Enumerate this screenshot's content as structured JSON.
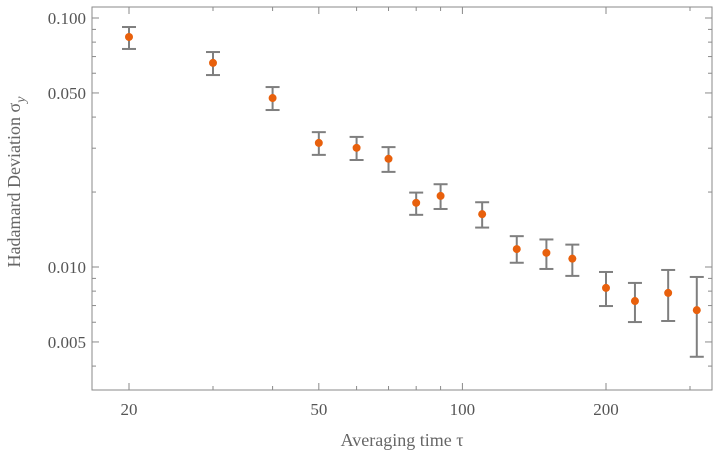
{
  "chart_data": {
    "type": "scatter",
    "title": "",
    "xlabel": "Averaging time τ",
    "ylabel": "Hadamard Deviation σ",
    "ylabel_subscript": "y",
    "xscale": "log",
    "yscale": "log",
    "xlim": [
      16,
      370
    ],
    "ylim": [
      0.0035,
      0.108
    ],
    "x_ticks": [
      20,
      50,
      100,
      200
    ],
    "x_tick_labels": [
      "20",
      "50",
      "100",
      "200"
    ],
    "y_ticks": [
      0.1,
      0.05,
      0.01,
      0.005
    ],
    "y_tick_labels": [
      "0.100",
      "0.050",
      "0.010",
      "0.005"
    ],
    "grid": false,
    "colors": {
      "point": "#e8600c",
      "errorbar": "#7f7f7f",
      "frame": "#8a8a8a"
    },
    "series": [
      {
        "name": "Hadamard deviation",
        "x": [
          20,
          30,
          40,
          50,
          60,
          70,
          80,
          90,
          110,
          130,
          150,
          170,
          200,
          230,
          270,
          310
        ],
        "y": [
          0.0839,
          0.066,
          0.0477,
          0.0315,
          0.0301,
          0.0272,
          0.0181,
          0.0193,
          0.0163,
          0.0118,
          0.0114,
          0.0108,
          0.00824,
          0.0073,
          0.00787,
          0.00671
        ],
        "y_low": [
          0.0751,
          0.059,
          0.0427,
          0.0282,
          0.0269,
          0.0241,
          0.0162,
          0.0171,
          0.0144,
          0.0104,
          0.00982,
          0.00921,
          0.00697,
          0.00601,
          0.00607,
          0.00436
        ],
        "y_high": [
          0.092,
          0.073,
          0.0528,
          0.0348,
          0.0333,
          0.0303,
          0.0199,
          0.0215,
          0.0182,
          0.0133,
          0.0129,
          0.0123,
          0.00955,
          0.00863,
          0.00973,
          0.00912
        ]
      }
    ]
  }
}
